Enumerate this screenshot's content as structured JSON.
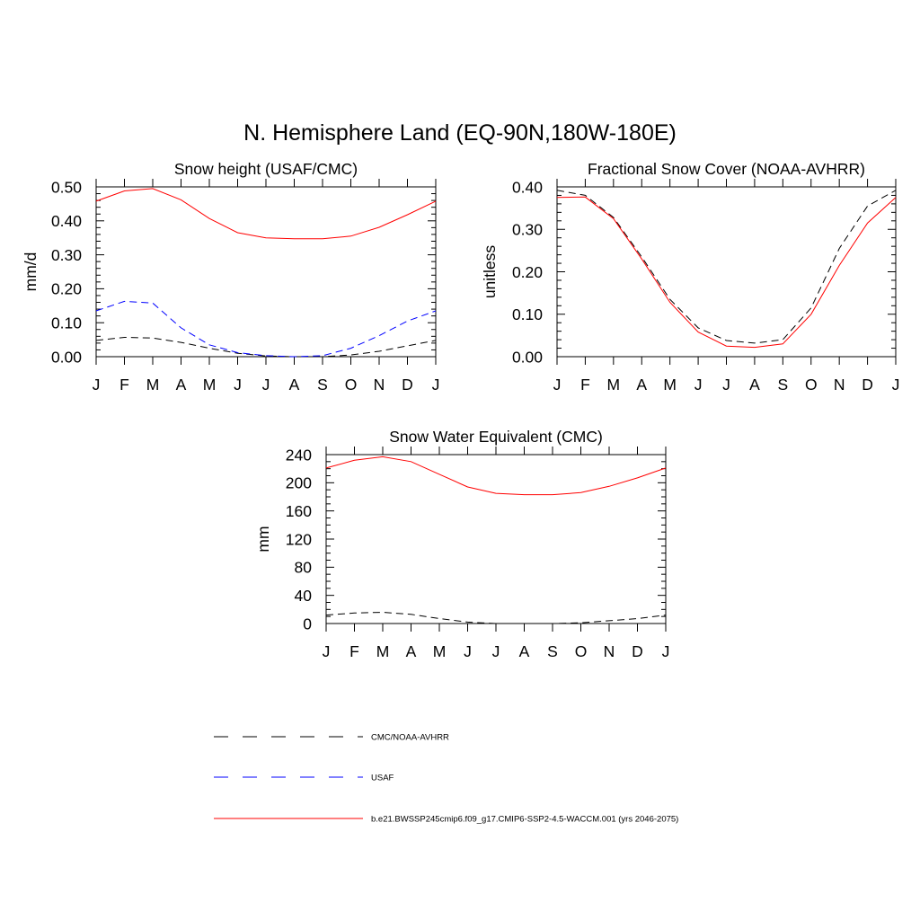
{
  "title": "N. Hemisphere Land (EQ-90N,180W-180E)",
  "chart_data": [
    {
      "type": "line",
      "title": "Snow height (USAF/CMC)",
      "ylabel": "mm/d",
      "xlabel": "",
      "categories": [
        "J",
        "F",
        "M",
        "A",
        "M",
        "J",
        "J",
        "A",
        "S",
        "O",
        "N",
        "D",
        "J"
      ],
      "ylim": [
        0,
        0.5
      ],
      "yticks": [
        "0.00",
        "0.10",
        "0.20",
        "0.30",
        "0.40",
        "0.50"
      ],
      "series": [
        {
          "name": "CMC/NOAA-AVHRR",
          "color": "#000000",
          "dash": true,
          "values": [
            0.048,
            0.057,
            0.055,
            0.042,
            0.025,
            0.01,
            0.002,
            0.0,
            0.0,
            0.005,
            0.016,
            0.032,
            0.048
          ]
        },
        {
          "name": "USAF",
          "color": "#0000ff",
          "dash": true,
          "values": [
            0.135,
            0.163,
            0.158,
            0.085,
            0.035,
            0.012,
            0.003,
            0.0,
            0.003,
            0.025,
            0.062,
            0.105,
            0.135
          ]
        },
        {
          "name": "b.e21.BWSSP245cmip6.f09_g17.CMIP6-SSP2-4.5-WACCM.001 (yrs 2046-2075)",
          "color": "#ff0000",
          "dash": false,
          "values": [
            0.458,
            0.488,
            0.495,
            0.462,
            0.407,
            0.365,
            0.35,
            0.347,
            0.347,
            0.355,
            0.381,
            0.418,
            0.458
          ]
        }
      ]
    },
    {
      "type": "line",
      "title": "Fractional Snow Cover (NOAA-AVHRR)",
      "ylabel": "unitless",
      "xlabel": "",
      "categories": [
        "J",
        "F",
        "M",
        "A",
        "M",
        "J",
        "J",
        "A",
        "S",
        "O",
        "N",
        "D",
        "J"
      ],
      "ylim": [
        0,
        0.4
      ],
      "yticks": [
        "0.00",
        "0.10",
        "0.20",
        "0.30",
        "0.40"
      ],
      "series": [
        {
          "name": "CMC/NOAA-AVHRR",
          "color": "#000000",
          "dash": true,
          "values": [
            0.392,
            0.38,
            0.328,
            0.235,
            0.135,
            0.068,
            0.038,
            0.032,
            0.04,
            0.115,
            0.255,
            0.355,
            0.392
          ]
        },
        {
          "name": "b.e21.BWSSP245cmip6.f09_g17.CMIP6-SSP2-4.5-WACCM.001 (yrs 2046-2075)",
          "color": "#ff0000",
          "dash": false,
          "values": [
            0.375,
            0.376,
            0.325,
            0.23,
            0.128,
            0.058,
            0.025,
            0.022,
            0.03,
            0.1,
            0.215,
            0.315,
            0.375
          ]
        }
      ]
    },
    {
      "type": "line",
      "title": "Snow Water Equivalent (CMC)",
      "ylabel": "mm",
      "xlabel": "",
      "categories": [
        "J",
        "F",
        "M",
        "A",
        "M",
        "J",
        "J",
        "A",
        "S",
        "O",
        "N",
        "D",
        "J"
      ],
      "ylim": [
        0,
        240
      ],
      "yticks": [
        "0",
        "40",
        "80",
        "120",
        "160",
        "200",
        "240"
      ],
      "series": [
        {
          "name": "CMC/NOAA-AVHRR",
          "color": "#000000",
          "dash": true,
          "values": [
            12,
            15,
            16,
            13,
            7,
            2,
            0,
            0,
            0,
            1,
            4,
            7,
            12
          ]
        },
        {
          "name": "b.e21.BWSSP245cmip6.f09_g17.CMIP6-SSP2-4.5-WACCM.001 (yrs 2046-2075)",
          "color": "#ff0000",
          "dash": false,
          "values": [
            221,
            232,
            237,
            230,
            212,
            194,
            185,
            183,
            183,
            186,
            195,
            207,
            221
          ]
        }
      ]
    }
  ],
  "legend": [
    {
      "label": "CMC/NOAA-AVHRR",
      "color": "#000000",
      "dash": true
    },
    {
      "label": "USAF",
      "color": "#0000ff",
      "dash": true
    },
    {
      "label": "b.e21.BWSSP245cmip6.f09_g17.CMIP6-SSP2-4.5-WACCM.001 (yrs 2046-2075)",
      "color": "#ff0000",
      "dash": false
    }
  ]
}
